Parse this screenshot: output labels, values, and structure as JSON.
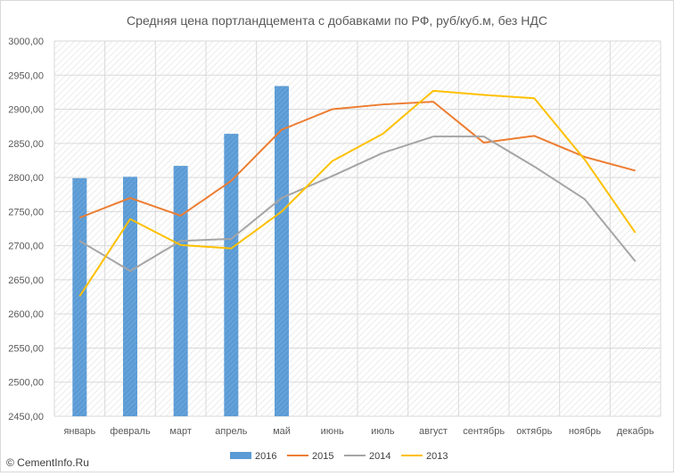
{
  "chart_data": {
    "type": "bar+line",
    "title": "Средняя цена портландцемента с добавками по РФ, руб/куб.м, без НДС",
    "categories": [
      "январь",
      "февраль",
      "март",
      "апрель",
      "май",
      "июнь",
      "июль",
      "август",
      "сентябрь",
      "октябрь",
      "ноябрь",
      "декабрь"
    ],
    "ylim": [
      2450,
      3000
    ],
    "yticks": [
      "2450,00",
      "2500,00",
      "2550,00",
      "2600,00",
      "2650,00",
      "2700,00",
      "2750,00",
      "2800,00",
      "2850,00",
      "2900,00",
      "2950,00",
      "3000,00"
    ],
    "grid": true,
    "legend_position": "bottom",
    "bar_series": {
      "name": "2016",
      "color": "#5b9bd5",
      "values": [
        2799,
        2801,
        2817,
        2864,
        2934
      ]
    },
    "line_series": [
      {
        "name": "2015",
        "color": "#ed7d31",
        "values": [
          2741,
          2770,
          2744,
          2795,
          2870,
          2900,
          2907,
          2911,
          2851,
          2861,
          2830,
          2810
        ]
      },
      {
        "name": "2014",
        "color": "#a5a5a5",
        "values": [
          2707,
          2663,
          2707,
          2710,
          2770,
          2802,
          2836,
          2860,
          2860,
          2816,
          2768,
          2677
        ]
      },
      {
        "name": "2013",
        "color": "#ffc000",
        "values": [
          2626,
          2739,
          2701,
          2696,
          2750,
          2824,
          2864,
          2927,
          2921,
          2916,
          2826,
          2719
        ]
      }
    ]
  },
  "watermark": "© CementInfo.Ru"
}
